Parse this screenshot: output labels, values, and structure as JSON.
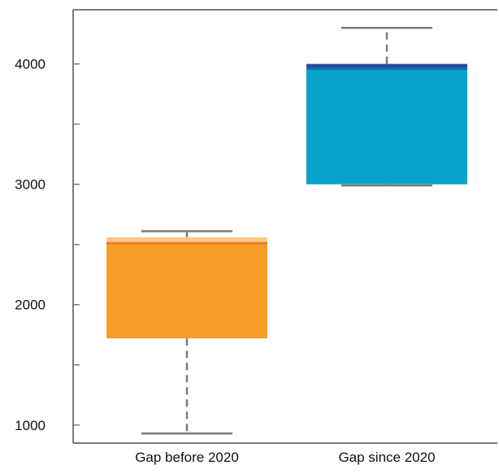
{
  "chart_data": {
    "type": "box",
    "title": "",
    "xlabel": "",
    "ylabel": "",
    "categories": [
      "Gap before 2020",
      "Gap since 2020"
    ],
    "yticks": [
      1000,
      2000,
      3000,
      4000
    ],
    "ylim": [
      850,
      4450
    ],
    "grid": false,
    "legend": "none",
    "boxes": [
      {
        "category": "Gap before 2020",
        "min": 930,
        "q1": 1720,
        "median": 2510,
        "q3": 2560,
        "max": 2610,
        "color": "#f59d27",
        "median_color": "#ef7a1a",
        "q3_cap_color": "#f8c98b"
      },
      {
        "category": "Gap since 2020",
        "min": 2990,
        "q1": 3000,
        "median": 3960,
        "q3": 4000,
        "max": 4300,
        "color": "#08a3cc",
        "median_color": "#0a6fb5",
        "q3_cap_color": "#2a4c96"
      }
    ]
  },
  "colors": {
    "axis": "#7a7a7a",
    "whisker": "#7a7a7a",
    "text": "#111111"
  }
}
